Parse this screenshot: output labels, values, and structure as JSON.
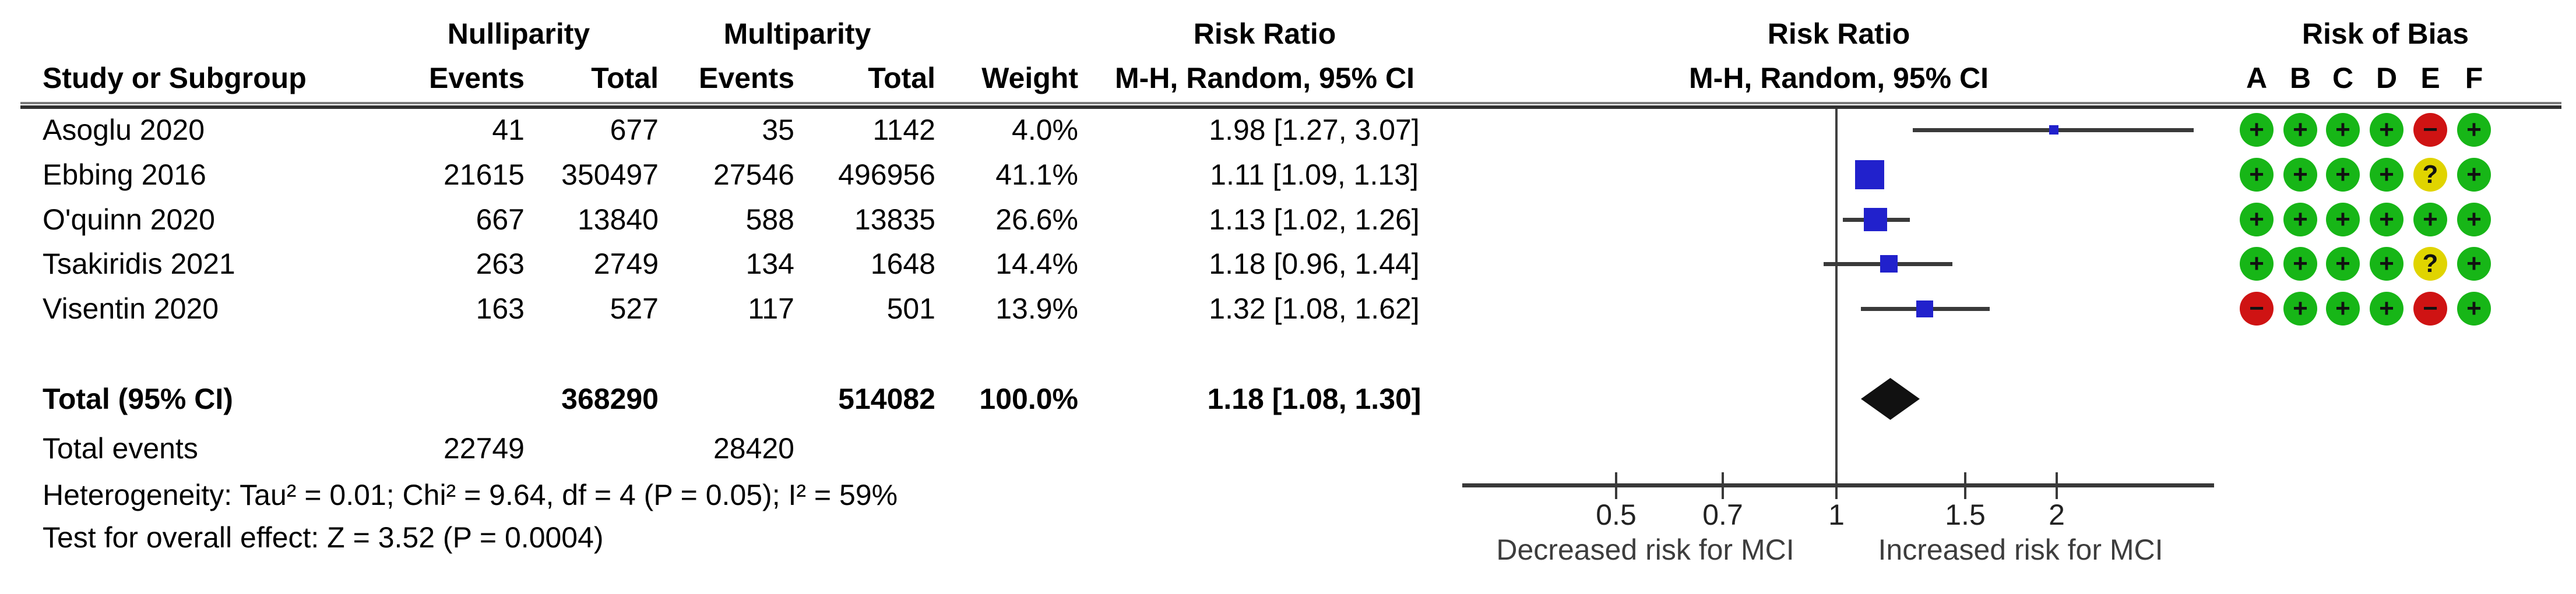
{
  "figure": {
    "group1": "Nulliparity",
    "group2": "Multiparity",
    "col_study": "Study or Subgroup",
    "col_events": "Events",
    "col_total": "Total",
    "col_weight": "Weight",
    "effect_title": "Risk Ratio",
    "effect_subtitle": "M-H, Random, 95% CI",
    "plot_title": "Risk Ratio",
    "plot_subtitle": "M-H, Random, 95% CI",
    "rob_title": "Risk of Bias",
    "rob_domains": [
      "A",
      "B",
      "C",
      "D",
      "E",
      "F"
    ]
  },
  "studies": [
    {
      "name": "Asoglu 2020",
      "events1": "41",
      "total1": "677",
      "events2": "35",
      "total2": "1142",
      "weight": "4.0%",
      "estimate": "1.98 [1.27, 3.07]",
      "rob": [
        "+",
        "+",
        "+",
        "+",
        "-",
        "+"
      ]
    },
    {
      "name": "Ebbing 2016",
      "events1": "21615",
      "total1": "350497",
      "events2": "27546",
      "total2": "496956",
      "weight": "41.1%",
      "estimate": "1.11 [1.09, 1.13]",
      "rob": [
        "+",
        "+",
        "+",
        "+",
        "?",
        "+"
      ]
    },
    {
      "name": "O'quinn 2020",
      "events1": "667",
      "total1": "13840",
      "events2": "588",
      "total2": "13835",
      "weight": "26.6%",
      "estimate": "1.13 [1.02, 1.26]",
      "rob": [
        "+",
        "+",
        "+",
        "+",
        "+",
        "+"
      ]
    },
    {
      "name": "Tsakiridis 2021",
      "events1": "263",
      "total1": "2749",
      "events2": "134",
      "total2": "1648",
      "weight": "14.4%",
      "estimate": "1.18 [0.96, 1.44]",
      "rob": [
        "+",
        "+",
        "+",
        "+",
        "?",
        "+"
      ]
    },
    {
      "name": "Visentin 2020",
      "events1": "163",
      "total1": "527",
      "events2": "117",
      "total2": "501",
      "weight": "13.9%",
      "estimate": "1.32 [1.08, 1.62]",
      "rob": [
        "-",
        "+",
        "+",
        "+",
        "-",
        "+"
      ]
    }
  ],
  "totals": {
    "label": "Total (95% CI)",
    "total1": "368290",
    "total2": "514082",
    "weight": "100.0%",
    "estimate": "1.18 [1.08, 1.30]",
    "events_label": "Total events",
    "events1": "22749",
    "events2": "28420"
  },
  "footnotes": {
    "heterogeneity": "Heterogeneity: Tau² = 0.01; Chi² = 9.64, df = 4 (P = 0.05); I² = 59%",
    "overall_effect": "Test for overall effect: Z = 3.52 (P = 0.0004)"
  },
  "chart_data": {
    "type": "scatter",
    "subtype": "forest-plot",
    "title": "Risk Ratio  M-H, Random, 95% CI",
    "x_scale": "log",
    "x_ticks": [
      0.5,
      0.7,
      1,
      1.5,
      2
    ],
    "x_axis_range": [
      0.31,
      3.28
    ],
    "null_line": 1,
    "xlabel_left": "Decreased risk for MCI",
    "xlabel_right": "Increased risk for MCI",
    "points": [
      {
        "study": "Asoglu 2020",
        "rr": 1.98,
        "ci_low": 1.27,
        "ci_high": 3.07,
        "weight_pct": 4.0
      },
      {
        "study": "Ebbing 2016",
        "rr": 1.11,
        "ci_low": 1.09,
        "ci_high": 1.13,
        "weight_pct": 41.1
      },
      {
        "study": "O'quinn 2020",
        "rr": 1.13,
        "ci_low": 1.02,
        "ci_high": 1.26,
        "weight_pct": 26.6
      },
      {
        "study": "Tsakiridis 2021",
        "rr": 1.18,
        "ci_low": 0.96,
        "ci_high": 1.44,
        "weight_pct": 14.4
      },
      {
        "study": "Visentin 2020",
        "rr": 1.32,
        "ci_low": 1.08,
        "ci_high": 1.62,
        "weight_pct": 13.9
      }
    ],
    "total": {
      "label": "Total (95% CI)",
      "rr": 1.18,
      "ci_low": 1.08,
      "ci_high": 1.3
    },
    "rob_symbols": {
      "low": "+",
      "high": "-",
      "unclear": "?"
    },
    "colors": {
      "marker_square": "#2121cc",
      "pooled_diamond": "#111111",
      "rob_low": "#17b617",
      "rob_high": "#cf1313",
      "rob_unclear": "#e0d400",
      "lines": "#3a3a3a"
    }
  }
}
